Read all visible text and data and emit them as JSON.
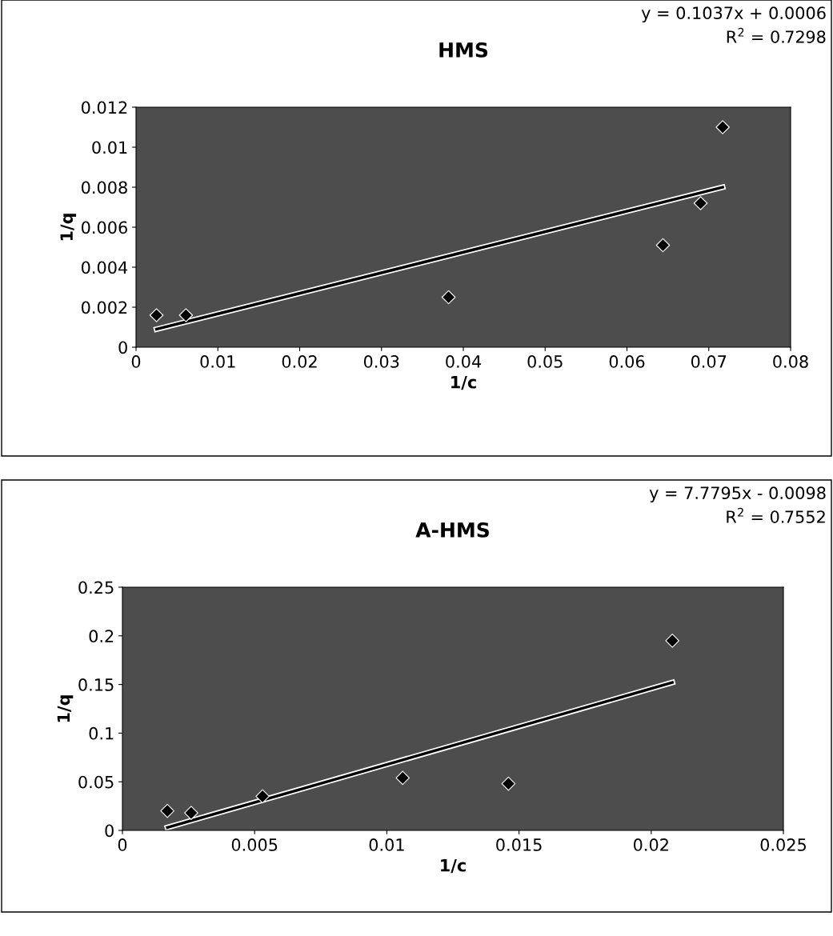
{
  "chart_data": [
    {
      "type": "scatter",
      "title": "HMS",
      "xlabel": "1/c",
      "ylabel": "1/q",
      "annotations": [
        "y = 0.1037x + 0.0006",
        "R$^{2}$ = 0.7298"
      ],
      "xlim": [
        0,
        0.08
      ],
      "xticks": [
        0,
        0.01,
        0.02,
        0.03,
        0.04,
        0.05,
        0.06,
        0.07,
        0.08
      ],
      "ylim": [
        0,
        0.012
      ],
      "yticks": [
        0,
        0.002,
        0.004,
        0.006,
        0.008,
        0.01,
        0.012
      ],
      "grid": false,
      "series": [
        {
          "marker": "diamond",
          "color": "#000000",
          "x": [
            0.0025,
            0.0061,
            0.0382,
            0.0644,
            0.069,
            0.0717
          ],
          "values": [
            0.0016,
            0.0016,
            0.0025,
            0.0051,
            0.0072,
            0.011
          ]
        },
        {
          "type": "line",
          "marker": "none",
          "color": "#000000",
          "x": [
            0.0025,
            0.0717
          ],
          "values": [
            0.0009,
            0.008
          ]
        }
      ]
    },
    {
      "type": "scatter",
      "title": "A-HMS",
      "xlabel": "1/c",
      "ylabel": "1/q",
      "annotations": [
        "y = 7.7795x - 0.0098",
        "R$^{2}$ = 0.7552"
      ],
      "xlim": [
        0,
        0.025
      ],
      "xticks": [
        0,
        0.005,
        0.01,
        0.015,
        0.02,
        0.025
      ],
      "ylim": [
        0,
        0.25
      ],
      "yticks": [
        0,
        0.05,
        0.1,
        0.15,
        0.2,
        0.25
      ],
      "grid": false,
      "series": [
        {
          "marker": "diamond",
          "color": "#000000",
          "x": [
            0.0017,
            0.0026,
            0.0053,
            0.0106,
            0.0146,
            0.0208
          ],
          "values": [
            0.02,
            0.018,
            0.035,
            0.054,
            0.048,
            0.195
          ]
        },
        {
          "type": "line",
          "marker": "none",
          "color": "#000000",
          "x": [
            0.0017,
            0.0208
          ],
          "values": [
            0.003,
            0.152
          ]
        }
      ]
    }
  ]
}
